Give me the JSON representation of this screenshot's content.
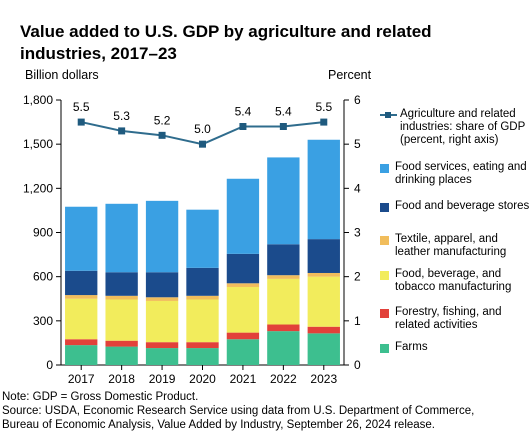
{
  "chart_data": {
    "type": "bar",
    "title_lines": [
      "Value added to U.S. GDP by agriculture and related",
      "industries, 2017–23"
    ],
    "left_axis_label": "Billion dollars",
    "right_axis_label": "Percent",
    "left_ticks": [
      "0",
      "300",
      "600",
      "900",
      "1,200",
      "1,500",
      "1,800"
    ],
    "right_ticks": [
      "0",
      "1",
      "2",
      "3",
      "4",
      "5",
      "6"
    ],
    "ylim_left": [
      0,
      1800
    ],
    "ylim_right": [
      0,
      6
    ],
    "categories": [
      "2017",
      "2018",
      "2019",
      "2020",
      "2021",
      "2022",
      "2023"
    ],
    "series": [
      {
        "name": "Farms",
        "color": "#3dbf8f",
        "values": [
          135,
          125,
          115,
          115,
          175,
          230,
          215
        ]
      },
      {
        "name": "Forestry, fishing, and related activities",
        "color": "#e2413a",
        "values": [
          40,
          40,
          40,
          40,
          45,
          45,
          45
        ]
      },
      {
        "name": "Food, beverage, and tobacco manufacturing",
        "color": "#f2ec5c",
        "values": [
          275,
          280,
          280,
          290,
          310,
          310,
          340
        ]
      },
      {
        "name": "Textile, apparel, and leather manufacturing",
        "color": "#f1bd5c",
        "values": [
          25,
          25,
          25,
          25,
          25,
          25,
          25
        ]
      },
      {
        "name": "Food and beverage stores",
        "color": "#1b4b8c",
        "values": [
          165,
          160,
          170,
          190,
          200,
          210,
          230
        ]
      },
      {
        "name": "Food services, eating and drinking places",
        "color": "#3aa0e3",
        "values": [
          435,
          465,
          485,
          395,
          510,
          590,
          675
        ]
      }
    ],
    "line_series": {
      "name": "Agriculture and related industries: share of GDP (percent, right axis)",
      "color": "#2f6c8d",
      "values": [
        5.5,
        5.3,
        5.2,
        5.0,
        5.4,
        5.4,
        5.5
      ],
      "labels": [
        "5.5",
        "5.3",
        "5.2",
        "5.0",
        "5.4",
        "5.4",
        "5.5"
      ]
    },
    "legend_order": [
      "Agriculture and related industries: share of GDP (percent, right axis)",
      "Food services, eating and drinking places",
      "Food and beverage stores",
      "Textile, apparel, and leather manufacturing",
      "Food, beverage, and tobacco manufacturing",
      "Forestry, fishing, and related activities",
      "Farms"
    ],
    "legend_placement": "right",
    "grid": false
  },
  "notes": {
    "note": "Note: GDP = Gross Domestic Product.",
    "source_line1": "Source: USDA, Economic Research Service using data from U.S. Department of Commerce,",
    "source_line2": "Bureau of Economic Analysis, Value Added by Industry, September 26, 2024 release."
  }
}
